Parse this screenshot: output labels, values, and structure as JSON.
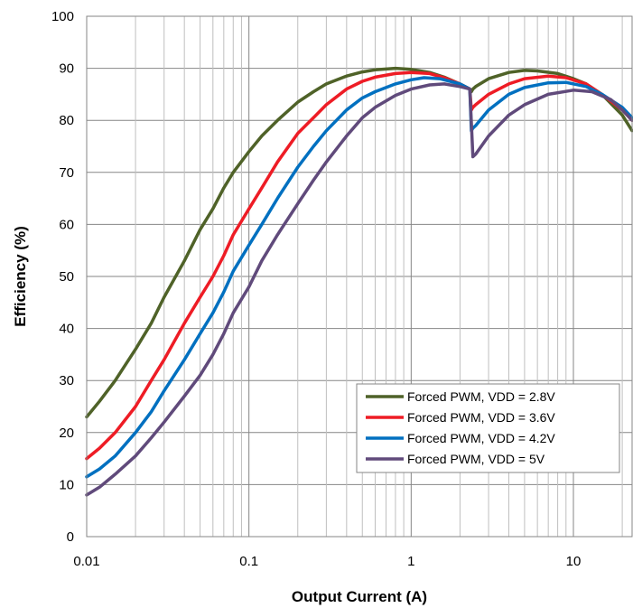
{
  "chart_data": {
    "type": "line",
    "title": "",
    "xlabel": "Output Current (A)",
    "ylabel": "Efficiency (%)",
    "xscale": "log",
    "xlim": [
      0.01,
      23
    ],
    "ylim": [
      0,
      100
    ],
    "x_ticks": [
      0.01,
      0.1,
      1,
      10
    ],
    "x_tick_labels": [
      "0.01",
      "0.1",
      "1",
      "10"
    ],
    "y_ticks": [
      0,
      10,
      20,
      30,
      40,
      50,
      60,
      70,
      80,
      90,
      100
    ],
    "y_tick_labels": [
      "0",
      "10",
      "20",
      "30",
      "40",
      "50",
      "60",
      "70",
      "80",
      "90",
      "100"
    ],
    "grid": true,
    "legend_position": "bottom-right",
    "series": [
      {
        "name": "Forced PWM, VDD = 2.8V",
        "color": "#4f6228",
        "points": [
          [
            0.01,
            23
          ],
          [
            0.012,
            26
          ],
          [
            0.015,
            30
          ],
          [
            0.02,
            36
          ],
          [
            0.025,
            41
          ],
          [
            0.03,
            46
          ],
          [
            0.04,
            53
          ],
          [
            0.05,
            59
          ],
          [
            0.06,
            63
          ],
          [
            0.07,
            67
          ],
          [
            0.08,
            70
          ],
          [
            0.1,
            74
          ],
          [
            0.12,
            77
          ],
          [
            0.15,
            80
          ],
          [
            0.2,
            83.5
          ],
          [
            0.25,
            85.5
          ],
          [
            0.3,
            87
          ],
          [
            0.4,
            88.5
          ],
          [
            0.5,
            89.3
          ],
          [
            0.6,
            89.7
          ],
          [
            0.8,
            90
          ],
          [
            1.0,
            89.8
          ],
          [
            1.3,
            89.2
          ],
          [
            1.6,
            88.3
          ],
          [
            2.0,
            87
          ],
          [
            2.3,
            86
          ],
          [
            2.35,
            85.5
          ],
          [
            2.4,
            86
          ],
          [
            2.5,
            86.5
          ],
          [
            3,
            88
          ],
          [
            4,
            89.2
          ],
          [
            5,
            89.6
          ],
          [
            6,
            89.5
          ],
          [
            8,
            89
          ],
          [
            10,
            88
          ],
          [
            12,
            87
          ],
          [
            15,
            85
          ],
          [
            20,
            81
          ],
          [
            23,
            78
          ]
        ]
      },
      {
        "name": "Forced PWM, VDD = 3.6V",
        "color": "#ee1c25",
        "points": [
          [
            0.01,
            15
          ],
          [
            0.012,
            17
          ],
          [
            0.015,
            20
          ],
          [
            0.02,
            25
          ],
          [
            0.025,
            30
          ],
          [
            0.03,
            34
          ],
          [
            0.04,
            41
          ],
          [
            0.05,
            46
          ],
          [
            0.06,
            50
          ],
          [
            0.07,
            54
          ],
          [
            0.08,
            58
          ],
          [
            0.1,
            63
          ],
          [
            0.12,
            67
          ],
          [
            0.15,
            72
          ],
          [
            0.2,
            77.5
          ],
          [
            0.25,
            80.5
          ],
          [
            0.3,
            83
          ],
          [
            0.4,
            86
          ],
          [
            0.5,
            87.5
          ],
          [
            0.6,
            88.3
          ],
          [
            0.8,
            89
          ],
          [
            1.0,
            89.2
          ],
          [
            1.3,
            89
          ],
          [
            1.6,
            88.2
          ],
          [
            2.0,
            87
          ],
          [
            2.3,
            86
          ],
          [
            2.35,
            82
          ],
          [
            2.4,
            82.5
          ],
          [
            2.5,
            83
          ],
          [
            3,
            85
          ],
          [
            4,
            87
          ],
          [
            5,
            88
          ],
          [
            7,
            88.5
          ],
          [
            9,
            88.2
          ],
          [
            12,
            87
          ],
          [
            15,
            85
          ],
          [
            20,
            82
          ],
          [
            23,
            80
          ]
        ]
      },
      {
        "name": "Forced PWM, VDD = 4.2V",
        "color": "#0070c0",
        "points": [
          [
            0.01,
            11.5
          ],
          [
            0.012,
            13
          ],
          [
            0.015,
            15.5
          ],
          [
            0.02,
            20
          ],
          [
            0.025,
            24
          ],
          [
            0.03,
            28
          ],
          [
            0.04,
            34
          ],
          [
            0.05,
            39
          ],
          [
            0.06,
            43
          ],
          [
            0.07,
            47
          ],
          [
            0.08,
            51
          ],
          [
            0.1,
            56
          ],
          [
            0.12,
            60
          ],
          [
            0.15,
            65
          ],
          [
            0.2,
            71
          ],
          [
            0.25,
            75
          ],
          [
            0.3,
            78
          ],
          [
            0.4,
            82
          ],
          [
            0.5,
            84.3
          ],
          [
            0.6,
            85.5
          ],
          [
            0.8,
            87
          ],
          [
            1.0,
            87.8
          ],
          [
            1.2,
            88.2
          ],
          [
            1.5,
            88
          ],
          [
            2.0,
            87
          ],
          [
            2.3,
            86
          ],
          [
            2.35,
            78
          ],
          [
            2.4,
            78.5
          ],
          [
            2.5,
            79
          ],
          [
            3,
            82
          ],
          [
            4,
            85
          ],
          [
            5,
            86.3
          ],
          [
            7,
            87.2
          ],
          [
            9,
            87.3
          ],
          [
            12,
            86.5
          ],
          [
            15,
            85
          ],
          [
            20,
            82.5
          ],
          [
            23,
            80.5
          ]
        ]
      },
      {
        "name": "Forced PWM, VDD = 5V",
        "color": "#604a7b",
        "points": [
          [
            0.01,
            8
          ],
          [
            0.012,
            9.5
          ],
          [
            0.015,
            12
          ],
          [
            0.02,
            15.5
          ],
          [
            0.025,
            19
          ],
          [
            0.03,
            22
          ],
          [
            0.04,
            27
          ],
          [
            0.05,
            31
          ],
          [
            0.06,
            35
          ],
          [
            0.07,
            39
          ],
          [
            0.08,
            43
          ],
          [
            0.1,
            48
          ],
          [
            0.12,
            53
          ],
          [
            0.15,
            58
          ],
          [
            0.2,
            64
          ],
          [
            0.25,
            68.5
          ],
          [
            0.3,
            72
          ],
          [
            0.4,
            77
          ],
          [
            0.5,
            80.5
          ],
          [
            0.6,
            82.5
          ],
          [
            0.8,
            84.8
          ],
          [
            1.0,
            86
          ],
          [
            1.3,
            86.8
          ],
          [
            1.6,
            87
          ],
          [
            2.0,
            86.5
          ],
          [
            2.3,
            86
          ],
          [
            2.4,
            73
          ],
          [
            2.5,
            73.5
          ],
          [
            3,
            77
          ],
          [
            4,
            81
          ],
          [
            5,
            83
          ],
          [
            7,
            85
          ],
          [
            10,
            85.8
          ],
          [
            13,
            85.5
          ],
          [
            17,
            84
          ],
          [
            20,
            82
          ],
          [
            23,
            80
          ]
        ]
      }
    ]
  }
}
